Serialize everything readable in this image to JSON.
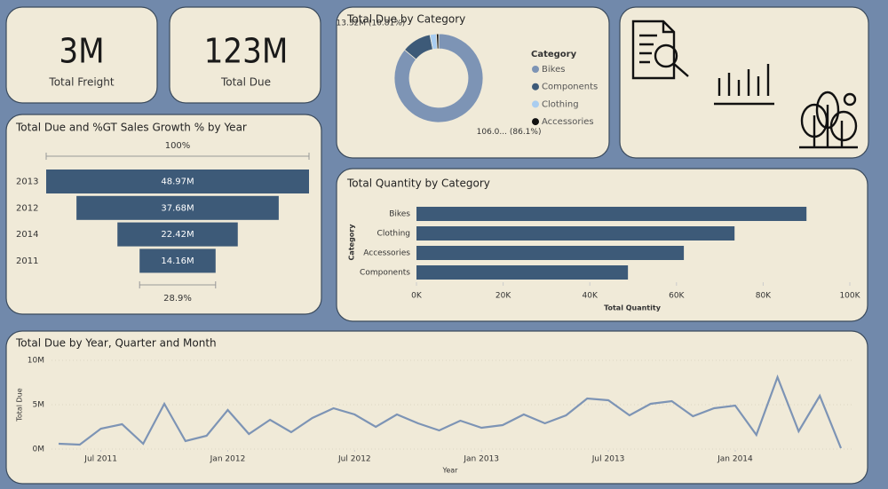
{
  "cards": [
    {
      "value": "3M",
      "label": "Total Freight"
    },
    {
      "value": "123M",
      "label": "Total Due"
    }
  ],
  "chart_data": [
    {
      "type": "donut",
      "title": "Total Due by Category",
      "legend_title": "Category",
      "categories": [
        "Bikes",
        "Components",
        "Clothing",
        "Accessories"
      ],
      "values": [
        106.0,
        13.32,
        2.9,
        1.0
      ],
      "value_labels": [
        "106.0... (86.1%)",
        "13.32M (10.81%)",
        null,
        null
      ],
      "colors": [
        "#7d94b5",
        "#3d5a78",
        "#a9cdf0",
        "#111111"
      ]
    },
    {
      "type": "funnel",
      "title": "Total Due and %GT Sales Growth % by Year",
      "categories": [
        "2013",
        "2012",
        "2014",
        "2011"
      ],
      "values": [
        48.97,
        37.68,
        22.42,
        14.16
      ],
      "value_labels": [
        "48.97M",
        "37.68M",
        "22.42M",
        "14.16M"
      ],
      "annotations": [
        "100%",
        "28.9%"
      ],
      "color": "#3d5a78"
    },
    {
      "type": "bar",
      "orientation": "horizontal",
      "title": "Total Quantity by Category",
      "categories": [
        "Bikes",
        "Clothing",
        "Accessories",
        "Components"
      ],
      "values": [
        90000,
        73400,
        61700,
        48800
      ],
      "color": "#3d5a78",
      "xlim": [
        0,
        100000
      ],
      "xticks": [
        {
          "value": 0,
          "label": "0K"
        },
        {
          "value": 20000,
          "label": "20K"
        },
        {
          "value": 40000,
          "label": "40K"
        },
        {
          "value": 60000,
          "label": "60K"
        },
        {
          "value": 80000,
          "label": "80K"
        },
        {
          "value": 100000,
          "label": "100K"
        }
      ],
      "xlabel": "Total Quantity",
      "ylabel": "Category"
    },
    {
      "type": "line",
      "title": "Total Due by Year, Quarter and Month",
      "x": [
        "2011-05",
        "2011-06",
        "2011-07",
        "2011-08",
        "2011-09",
        "2011-10",
        "2011-11",
        "2011-12",
        "2012-01",
        "2012-02",
        "2012-03",
        "2012-04",
        "2012-05",
        "2012-06",
        "2012-07",
        "2012-08",
        "2012-09",
        "2012-10",
        "2012-11",
        "2012-12",
        "2013-01",
        "2013-02",
        "2013-03",
        "2013-04",
        "2013-05",
        "2013-06",
        "2013-07",
        "2013-08",
        "2013-09",
        "2013-10",
        "2013-11",
        "2013-12",
        "2014-01",
        "2014-02",
        "2014-03",
        "2014-04",
        "2014-05",
        "2014-06"
      ],
      "values": [
        0.6,
        0.5,
        2.3,
        2.8,
        0.6,
        5.1,
        0.9,
        1.5,
        4.4,
        1.7,
        3.3,
        1.9,
        3.5,
        4.6,
        3.9,
        2.5,
        3.9,
        2.9,
        2.1,
        3.2,
        2.4,
        2.7,
        3.9,
        2.9,
        3.8,
        5.7,
        5.5,
        3.8,
        5.1,
        5.4,
        3.7,
        4.6,
        4.9,
        1.6,
        8.1,
        2.0,
        6.0,
        0.1
      ],
      "color": "#7d94b5",
      "ylim": [
        0,
        10
      ],
      "yticks": [
        {
          "value": 0,
          "label": "0M"
        },
        {
          "value": 5,
          "label": "5M"
        },
        {
          "value": 10,
          "label": "10M"
        }
      ],
      "xticks": [
        {
          "value": "2011-07",
          "label": "Jul 2011"
        },
        {
          "value": "2012-01",
          "label": "Jan 2012"
        },
        {
          "value": "2012-07",
          "label": "Jul 2012"
        },
        {
          "value": "2013-01",
          "label": "Jan 2013"
        },
        {
          "value": "2013-07",
          "label": "Jul 2013"
        },
        {
          "value": "2014-01",
          "label": "Jan 2014"
        }
      ],
      "xlabel": "Year",
      "ylabel": "Total Due",
      "grid": true
    }
  ]
}
